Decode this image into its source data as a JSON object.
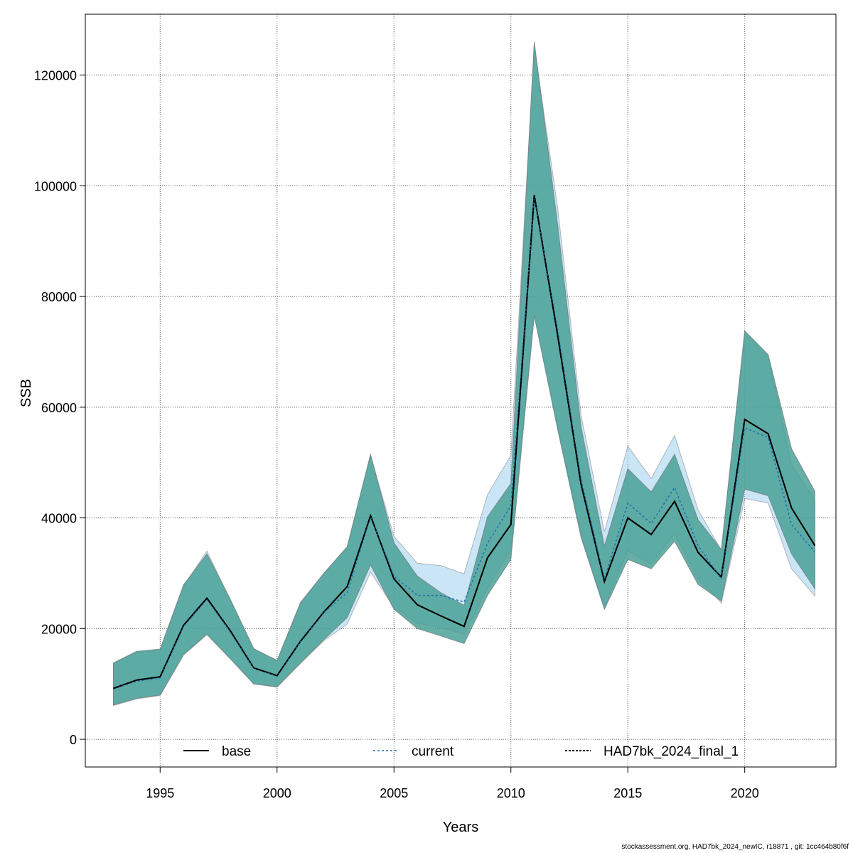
{
  "chart_data": {
    "type": "line",
    "xlabel": "Years",
    "ylabel": "SSB",
    "xlim": [
      1991.8,
      1851.0
    ],
    "ylim": [
      -5000,
      131000
    ],
    "xticks": [
      1995,
      2000,
      2005,
      2010,
      2015,
      2020
    ],
    "xtick_labels": [
      "1995",
      "2000",
      "2005",
      "2010",
      "2015",
      "2020"
    ],
    "yticks": [
      0,
      20000,
      40000,
      60000,
      80000,
      100000,
      120000
    ],
    "ytick_labels": [
      "0",
      "20000",
      "40000",
      "60000",
      "80000",
      "100000",
      "120000"
    ],
    "grid": true,
    "legend_position": "bottom",
    "x": [
      1993,
      1994,
      1995,
      1996,
      1997,
      1998,
      1999,
      2000,
      2001,
      2002,
      2003,
      2004,
      2005,
      2006,
      2007,
      2008,
      2009,
      2010,
      2011,
      2012,
      2013,
      2014,
      2015,
      2016,
      2017,
      2018,
      2019,
      2020,
      2021,
      2022,
      2023
    ],
    "series": [
      {
        "name": "base",
        "line_style": "solid",
        "color": "#000000",
        "values": [
          9200,
          10700,
          11300,
          20600,
          25500,
          19600,
          12900,
          11500,
          17700,
          23000,
          27600,
          40400,
          29000,
          24300,
          22300,
          20400,
          32800,
          38800,
          98300,
          73000,
          46100,
          28500,
          40000,
          37000,
          43000,
          33800,
          29300,
          57800,
          55200,
          41800,
          35000
        ],
        "lower": [
          6200,
          7400,
          8000,
          15300,
          19000,
          14600,
          10000,
          9500,
          13800,
          18000,
          22000,
          31500,
          23500,
          20000,
          18700,
          17300,
          26000,
          32500,
          76500,
          56000,
          36500,
          23500,
          32500,
          30800,
          35800,
          28000,
          25000,
          45200,
          44000,
          33500,
          27200
        ],
        "upper": [
          13800,
          15900,
          16300,
          27900,
          33500,
          25300,
          16400,
          14200,
          24600,
          30000,
          34800,
          51500,
          35500,
          29500,
          26500,
          24200,
          40200,
          46200,
          126000,
          93000,
          56500,
          34900,
          48900,
          44700,
          51500,
          39700,
          34300,
          73800,
          69500,
          52500,
          44800
        ],
        "band_color": "#5a8a4a"
      },
      {
        "name": "current",
        "line_style": "dotted",
        "color": "#1f6fb0",
        "values": [
          9100,
          10500,
          11100,
          20400,
          25300,
          19400,
          12800,
          11400,
          17600,
          22900,
          26500,
          40200,
          29500,
          26000,
          26000,
          24800,
          35400,
          42200,
          98000,
          74000,
          47000,
          29000,
          42700,
          39000,
          45500,
          35000,
          29000,
          56300,
          54500,
          38800,
          33800
        ],
        "lower": [
          6100,
          7300,
          7900,
          15200,
          18900,
          14500,
          10000,
          9400,
          13700,
          17800,
          20800,
          30200,
          23800,
          21000,
          20200,
          19000,
          27300,
          34300,
          76700,
          56500,
          37000,
          23800,
          34100,
          31600,
          37200,
          29100,
          24600,
          43500,
          42700,
          30800,
          25900
        ],
        "upper": [
          13700,
          15700,
          16100,
          27700,
          34000,
          25200,
          16300,
          14300,
          24800,
          30000,
          34700,
          51200,
          36700,
          31800,
          31400,
          29900,
          44200,
          51300,
          125200,
          96100,
          58600,
          37500,
          53000,
          47100,
          54900,
          41500,
          34100,
          73200,
          69200,
          49600,
          43200
        ],
        "band_color": "#9fd0ee"
      },
      {
        "name": "HAD7bk_2024_final_1",
        "line_style": "dotted",
        "color": "#000000",
        "values": [
          9200,
          10700,
          11300,
          20600,
          25500,
          19600,
          12900,
          11500,
          17700,
          23000,
          27600,
          40400,
          29000,
          24300,
          22300,
          20400,
          32800,
          38800,
          98300,
          73000,
          46100,
          28500,
          40000,
          37000,
          43000,
          33800,
          29300,
          57800,
          55200,
          41800,
          35000
        ],
        "lower": [
          6200,
          7400,
          8000,
          15300,
          19000,
          14600,
          10000,
          9500,
          13800,
          18000,
          22000,
          31500,
          23500,
          20000,
          18700,
          17300,
          26000,
          32500,
          76500,
          56000,
          36500,
          23500,
          32500,
          30800,
          35800,
          28000,
          25000,
          45200,
          44000,
          33500,
          27200
        ],
        "upper": [
          13800,
          15900,
          16300,
          27900,
          33500,
          25300,
          16400,
          14200,
          24600,
          30000,
          34800,
          51500,
          35500,
          29500,
          26500,
          24200,
          40200,
          46200,
          126000,
          93000,
          56500,
          34900,
          48900,
          44700,
          51500,
          39700,
          34300,
          73800,
          69500,
          52500,
          44800
        ],
        "band_color": "#3aa8b8"
      }
    ]
  },
  "footer_text": "stockassessment.org, HAD7bk_2024_newIC, r18871 , git: 1cc464b80f6f"
}
